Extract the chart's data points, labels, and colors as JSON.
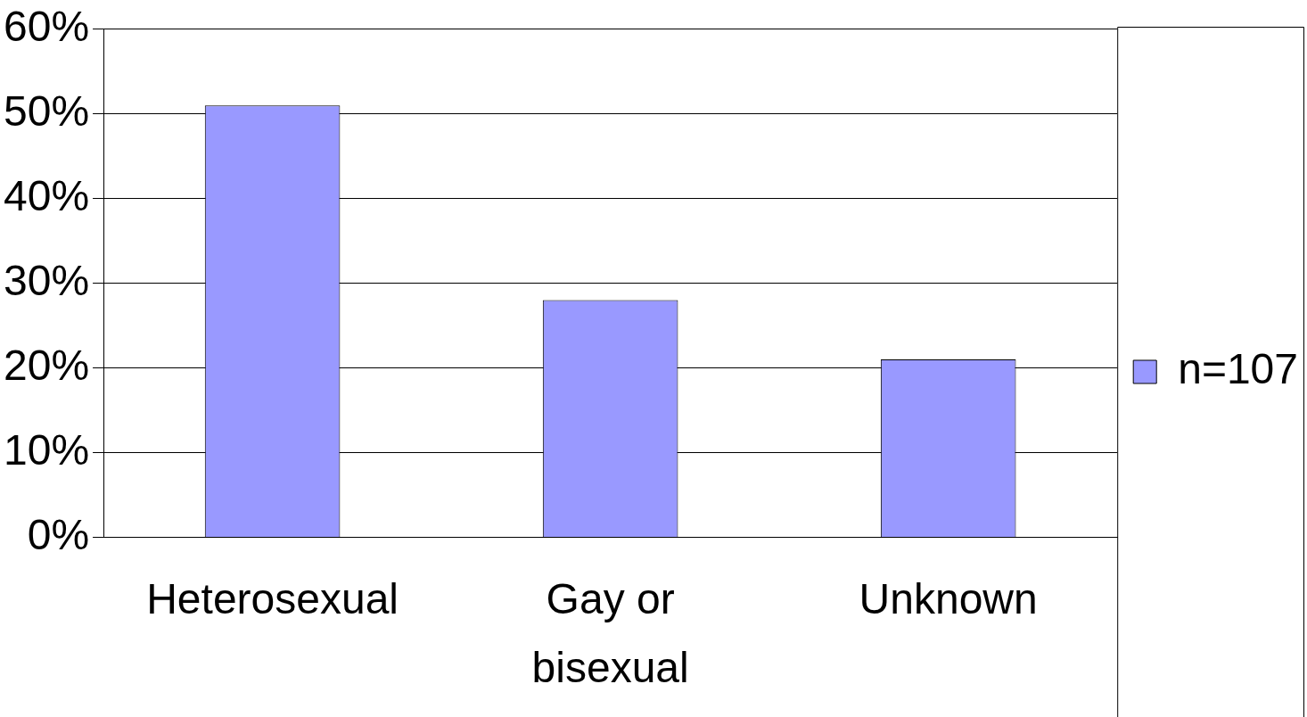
{
  "chart_data": {
    "type": "bar",
    "categories": [
      "Heterosexual",
      "Gay or bisexual",
      "Unknown"
    ],
    "series": [
      {
        "name": "n=107",
        "color": "#9999ff",
        "values": [
          51,
          28,
          21
        ]
      }
    ],
    "ylim": [
      0,
      60
    ],
    "yticks": [
      {
        "value": 0,
        "label": "0%"
      },
      {
        "value": 10,
        "label": "10%"
      },
      {
        "value": 20,
        "label": "20%"
      },
      {
        "value": 30,
        "label": "30%"
      },
      {
        "value": 40,
        "label": "40%"
      },
      {
        "value": 50,
        "label": "50%"
      },
      {
        "value": 60,
        "label": "60%"
      }
    ],
    "grid": "y",
    "legend": "right"
  }
}
